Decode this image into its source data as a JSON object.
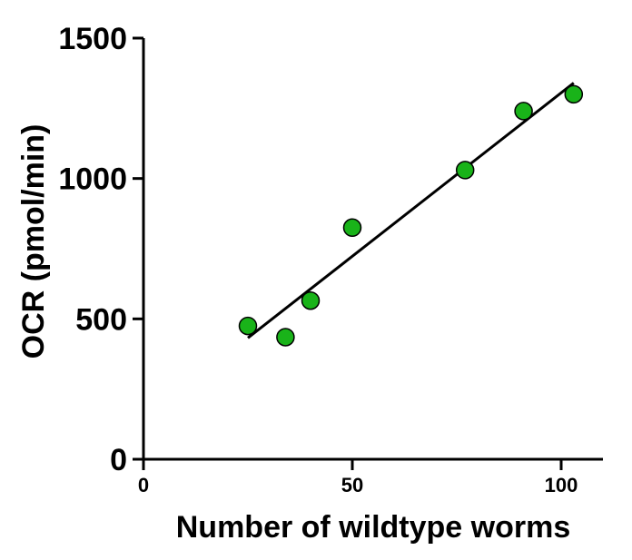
{
  "chart_data": {
    "type": "scatter",
    "title": "",
    "xlabel": "Number of wildtype worms",
    "ylabel": "OCR (pmol/min)",
    "xlim": [
      0,
      110
    ],
    "ylim": [
      0,
      1500
    ],
    "xticks": [
      0,
      50,
      100
    ],
    "yticks": [
      0,
      500,
      1000,
      1500
    ],
    "grid": false,
    "legend": "none",
    "series": [
      {
        "color": "#19b319",
        "x": [
          25,
          34,
          40,
          50,
          77,
          91,
          103
        ],
        "y": [
          475,
          435,
          565,
          825,
          1030,
          1240,
          1300
        ]
      }
    ],
    "fit_line": {
      "x": [
        25,
        103
      ],
      "y": [
        432,
        1340
      ],
      "color": "#000000"
    }
  }
}
